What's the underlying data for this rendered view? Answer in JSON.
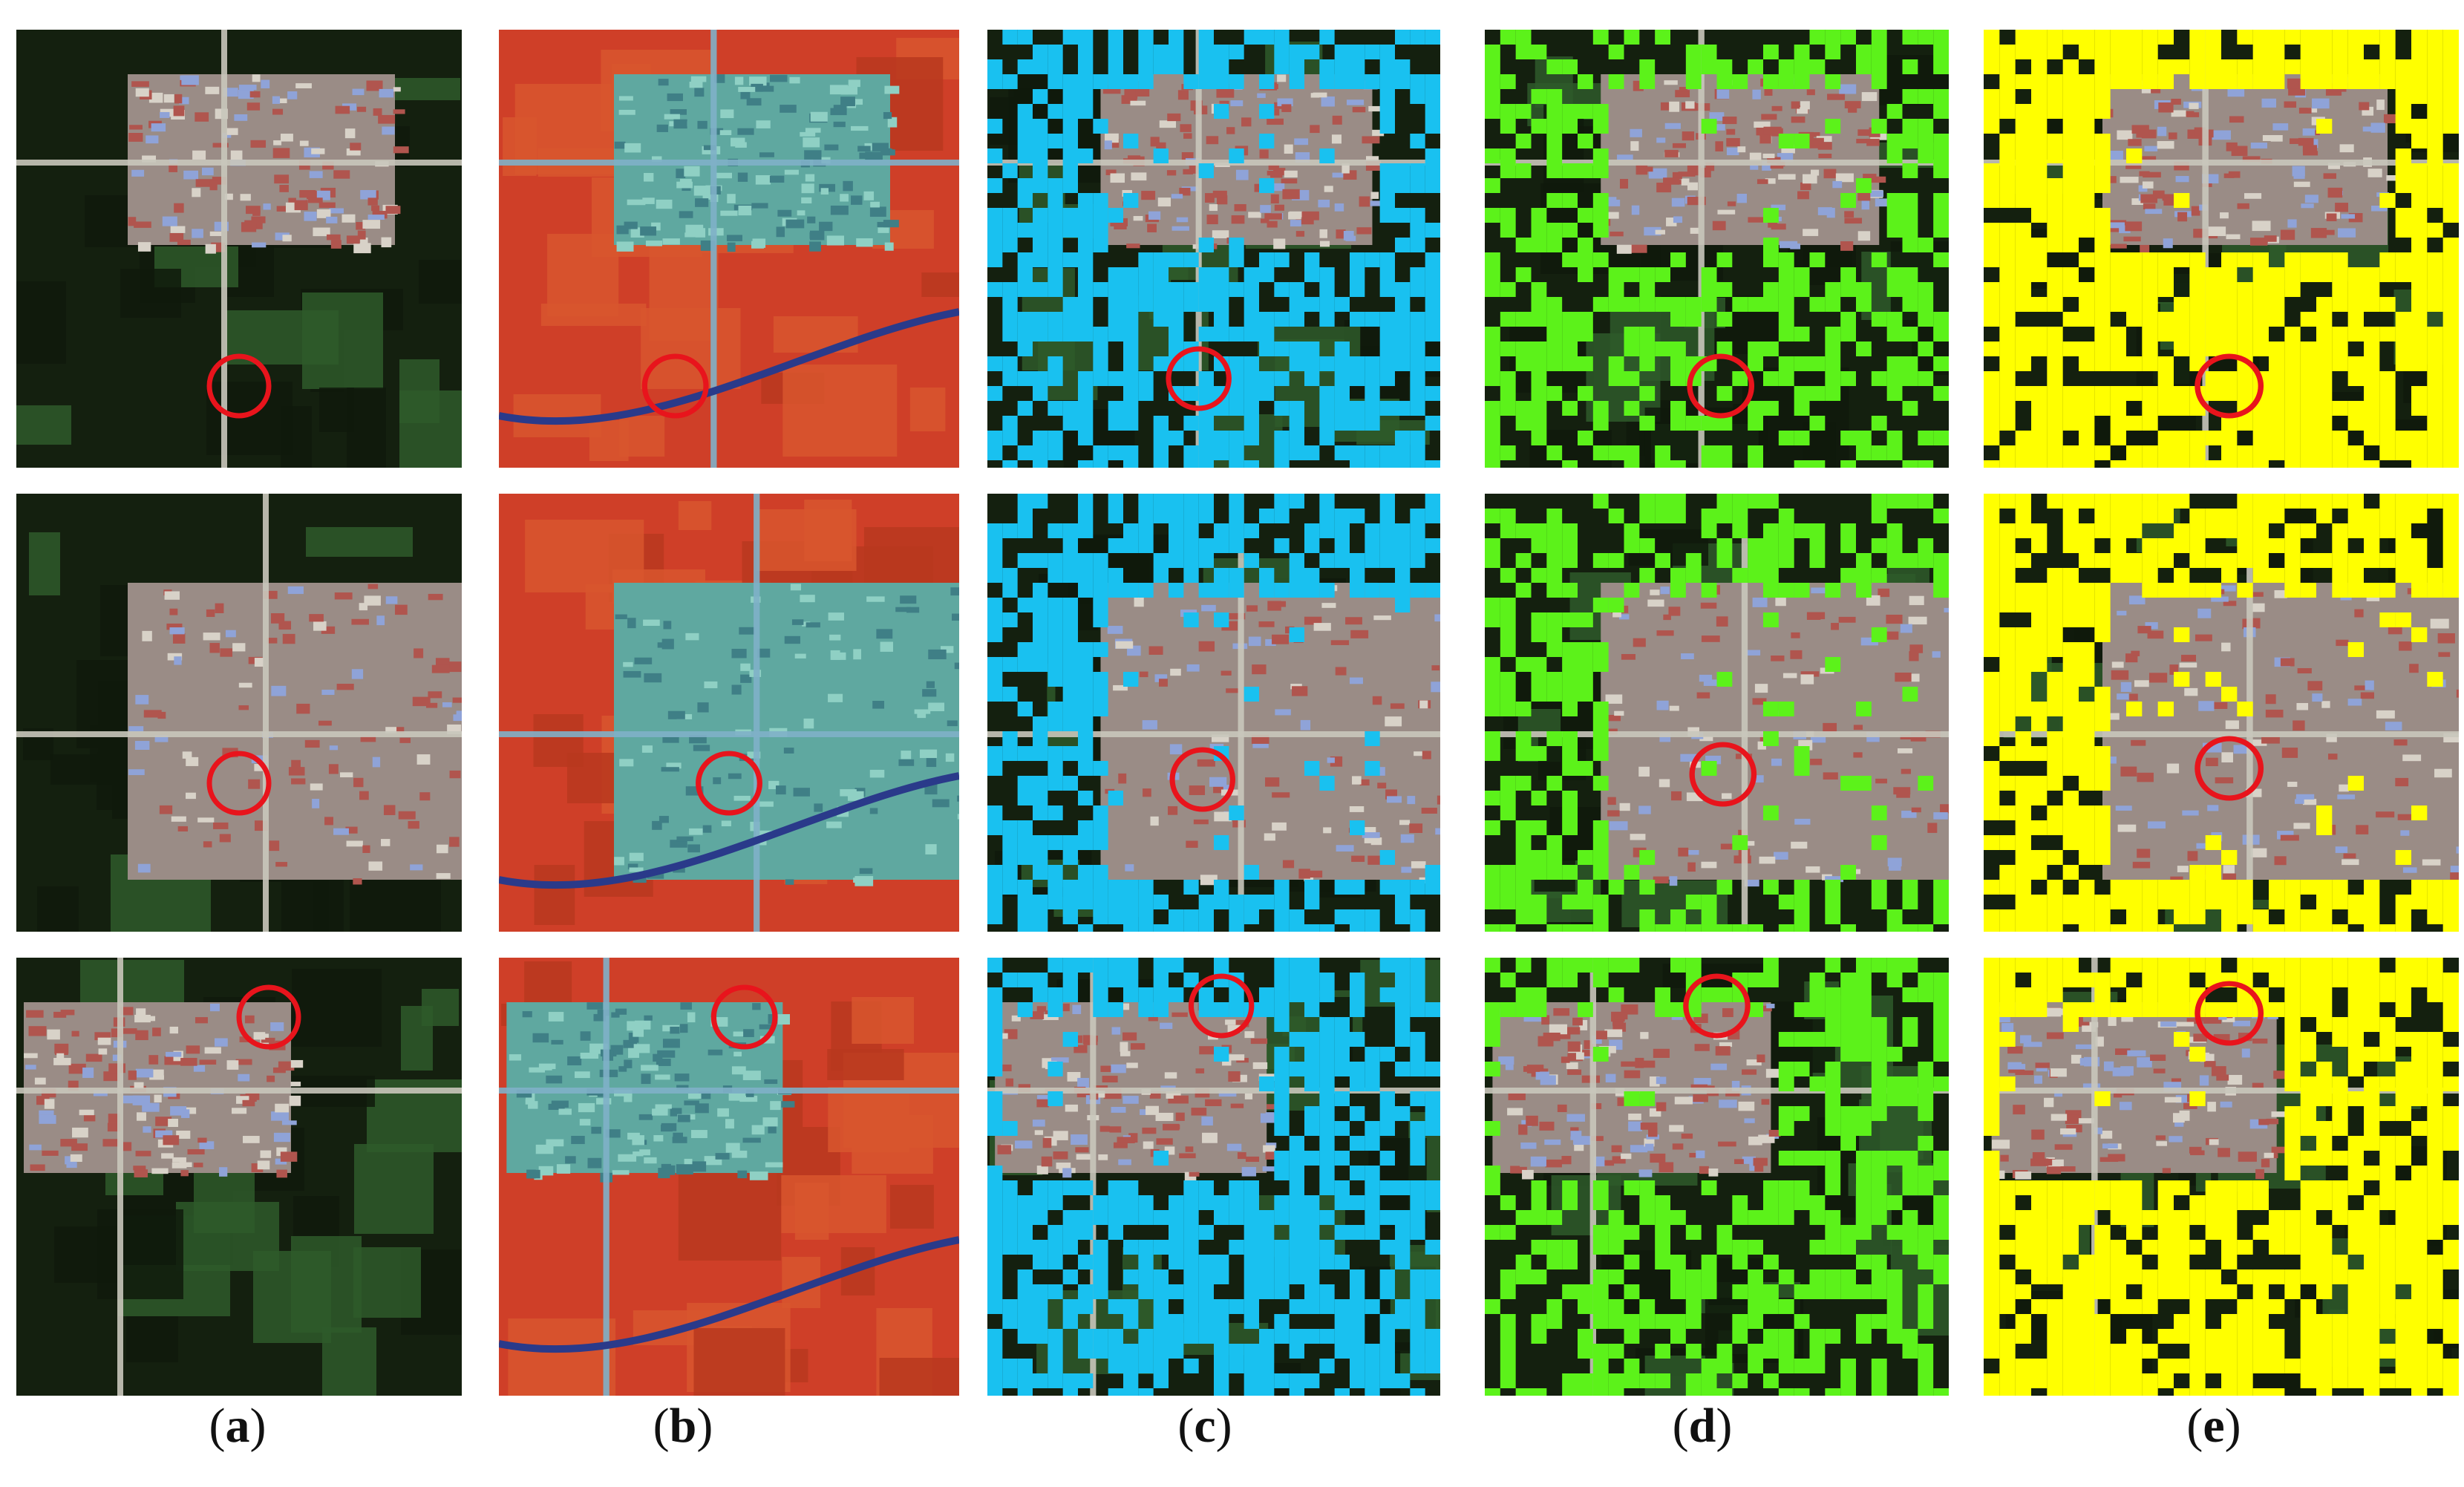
{
  "figure": {
    "panel_labels": [
      {
        "open": "(",
        "letter": "a",
        "close": ")"
      },
      {
        "open": "(",
        "letter": "b",
        "close": ")"
      },
      {
        "open": "(",
        "letter": "c",
        "close": ")"
      },
      {
        "open": "(",
        "letter": "d",
        "close": ")"
      },
      {
        "open": "(",
        "letter": "e",
        "close": ")"
      }
    ],
    "columns": [
      {
        "kind": "true-color",
        "base": "#1c2a17",
        "overlay": null
      },
      {
        "kind": "false-color",
        "base": "#c9432a",
        "overlay": null
      },
      {
        "kind": "classification-cyan",
        "base": "#1c2a17",
        "overlay": "#19c1f0"
      },
      {
        "kind": "classification-green",
        "base": "#1c2a17",
        "overlay": "#5cf21a"
      },
      {
        "kind": "classification-yellow",
        "base": "#1c2a17",
        "overlay": "#ffff00"
      }
    ],
    "rows": 3,
    "marker": {
      "shape": "circle",
      "color": "#e8141c"
    },
    "colors": {
      "settlement": "#9a8c86",
      "roof_red": "#b0554e",
      "roof_blue": "#8fa3d8",
      "road": "#c9c6bb",
      "field_dark": "#14200f",
      "field_green": "#2e5a2a",
      "false_color_settlement": "#5fa8a0",
      "false_color_field": "#cf3f28",
      "false_color_canal": "#2a3a8a"
    }
  }
}
